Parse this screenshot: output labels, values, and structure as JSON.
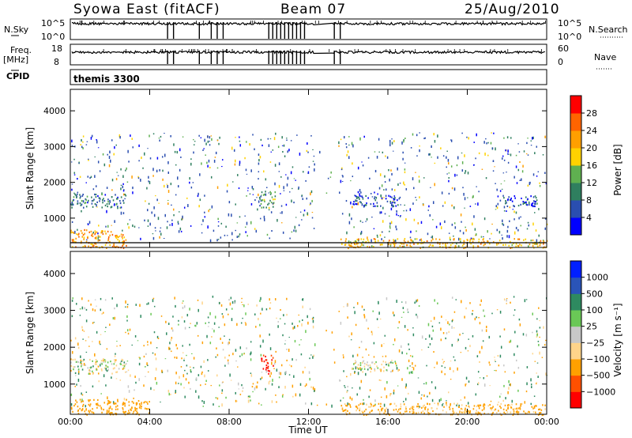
{
  "header": {
    "station": "Syowa East (fitACF)",
    "beam": "Beam 07",
    "date": "25/Aug/2010"
  },
  "strip_labels": {
    "nsky": "N.Sky",
    "nsky_ticks": [
      "10^5",
      "10^0"
    ],
    "nsearch": "N.Search",
    "nsearch_ticks": [
      "10^5",
      "10^0"
    ],
    "freq": "Freq.",
    "freq_unit": "[MHz]",
    "freq_ticks": [
      "18",
      "8"
    ],
    "nave": "Nave",
    "nave_ticks": [
      "60",
      "0"
    ],
    "cpid": "CPID",
    "cpid_value": "themis 3300"
  },
  "colors": {
    "power": [
      "#0000ff",
      "#2a4eb0",
      "#2f7f5f",
      "#5fb050",
      "#ffd200",
      "#ff9f00",
      "#ff6400",
      "#ff0000"
    ],
    "velocity": [
      "#ff0000",
      "#ff5000",
      "#ffa000",
      "#ffd48a",
      "#c8c8c8",
      "#6ac856",
      "#2e8a60",
      "#2a54b8",
      "#0020ff"
    ]
  },
  "chart_data": [
    {
      "type": "heatmap",
      "name": "power",
      "xlabel": "Time UT",
      "ylabel": "Slant Range [km]",
      "xlim": [
        0,
        24
      ],
      "ylim": [
        180,
        4600
      ],
      "x_ticks": [
        "00:00",
        "04:00",
        "08:00",
        "12:00",
        "16:00",
        "20:00",
        "00:00"
      ],
      "y_ticks": [
        "1000",
        "2000",
        "3000",
        "4000"
      ],
      "colorbar": {
        "label": "Power [dB]",
        "ticks": [
          "4",
          "8",
          "12",
          "16",
          "20",
          "24",
          "28"
        ],
        "range": [
          0,
          30
        ]
      },
      "approx_echo_regions": [
        {
          "t": [
            0,
            2.8
          ],
          "range_km": [
            180,
            700
          ],
          "value_db": 22
        },
        {
          "t": [
            0,
            2.8
          ],
          "range_km": [
            1300,
            1700
          ],
          "value_db": 8
        },
        {
          "t": [
            9.5,
            10.3
          ],
          "range_km": [
            1300,
            1800
          ],
          "value_db": 12
        },
        {
          "t": [
            13.6,
            24
          ],
          "range_km": [
            180,
            450
          ],
          "value_db": 20
        },
        {
          "t": [
            14.2,
            16.5
          ],
          "range_km": [
            1350,
            1650
          ],
          "value_db": 6
        },
        {
          "t": [
            21.5,
            23.5
          ],
          "range_km": [
            1350,
            1650
          ],
          "value_db": 6
        }
      ]
    },
    {
      "type": "heatmap",
      "name": "velocity",
      "xlabel": "Time UT",
      "ylabel": "Slant Range [km]",
      "xlim": [
        0,
        24
      ],
      "ylim": [
        180,
        4600
      ],
      "x_ticks": [
        "00:00",
        "04:00",
        "08:00",
        "12:00",
        "16:00",
        "20:00",
        "00:00"
      ],
      "y_ticks": [
        "1000",
        "2000",
        "3000",
        "4000"
      ],
      "colorbar": {
        "label": "Velocity [m s⁻¹]",
        "ticks": [
          "1000",
          "500",
          "100",
          "25",
          "−25",
          "−100",
          "−500",
          "−1000"
        ]
      },
      "approx_echo_regions": [
        {
          "t": [
            0,
            4
          ],
          "range_km": [
            180,
            600
          ],
          "value_ms": -300
        },
        {
          "t": [
            0,
            2.8
          ],
          "range_km": [
            1300,
            1700
          ],
          "value_ms": 0
        },
        {
          "t": [
            9.6,
            10.2
          ],
          "range_km": [
            1300,
            1800
          ],
          "value_ms": -1000
        },
        {
          "t": [
            13.6,
            24
          ],
          "range_km": [
            180,
            500
          ],
          "value_ms": -150
        },
        {
          "t": [
            14.2,
            16.5
          ],
          "range_km": [
            1350,
            1650
          ],
          "value_ms": 0
        }
      ]
    }
  ]
}
